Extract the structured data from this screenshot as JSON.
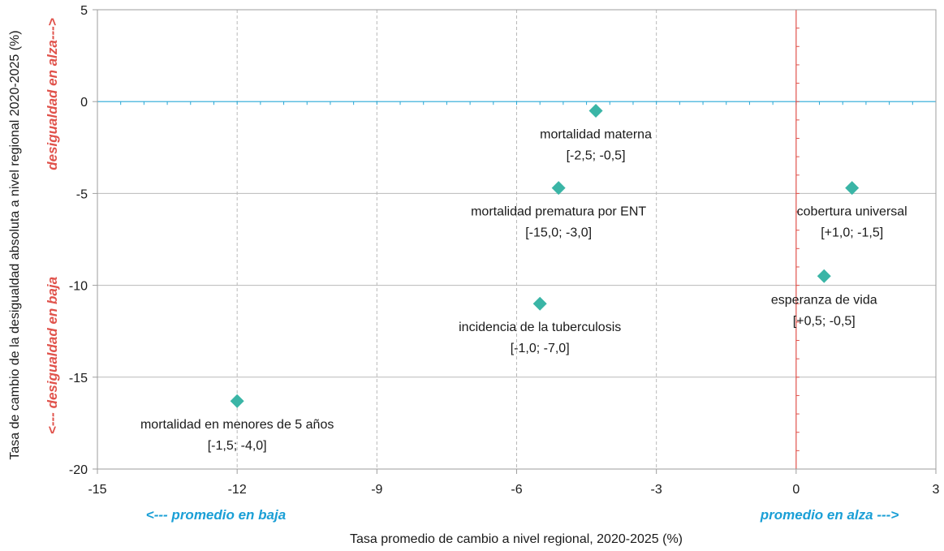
{
  "chart_data": {
    "type": "scatter",
    "xlabel": "Tasa promedio de cambio a nivel regional, 2020-2025 (%)",
    "ylabel": "Tasa de cambio de la desigualdad absoluta a nivel regional 2020-2025 (%)",
    "xlim": [
      -15,
      3
    ],
    "ylim": [
      -20,
      5
    ],
    "xticks": [
      -15,
      -12,
      -9,
      -6,
      -3,
      0,
      3
    ],
    "yticks": [
      5,
      0,
      -5,
      -10,
      -15,
      -20
    ],
    "grid": true,
    "marker_color": "#3ab5a6",
    "points": [
      {
        "x": -4.3,
        "y": -0.5,
        "label": "mortalidad materna",
        "range": "[-2,5; -0,5]",
        "label_pos": "below"
      },
      {
        "x": -5.1,
        "y": -4.7,
        "label": "mortalidad prematura por ENT",
        "range": "[-15,0; -3,0]",
        "label_pos": "below"
      },
      {
        "x": 1.2,
        "y": -4.7,
        "label": "cobertura universal",
        "range": "[+1,0; -1,5]",
        "label_pos": "below"
      },
      {
        "x": 0.6,
        "y": -9.5,
        "label": "esperanza de vida",
        "range": "[+0,5; -0,5]",
        "label_pos": "below"
      },
      {
        "x": -5.5,
        "y": -11.0,
        "label": "incidencia de la tuberculosis",
        "range": "[-1,0; -7,0]",
        "label_pos": "below"
      },
      {
        "x": -12.0,
        "y": -16.3,
        "label": "mortalidad en menores de 5 años",
        "range": "[-1,5; -4,0]",
        "label_pos": "below"
      }
    ],
    "reference_lines": {
      "horizontal_zero_color": "#29a8d6",
      "vertical_zero_color": "#e0524b"
    },
    "annotations": {
      "x_negative": "<--- promedio en baja",
      "x_positive": "promedio en alza --->",
      "y_positive": "desigualdad en alza--->",
      "y_negative": "<--- desigualdad en baja",
      "x_annotation_color": "#1a9fd6",
      "y_annotation_color": "#e0524b"
    }
  }
}
